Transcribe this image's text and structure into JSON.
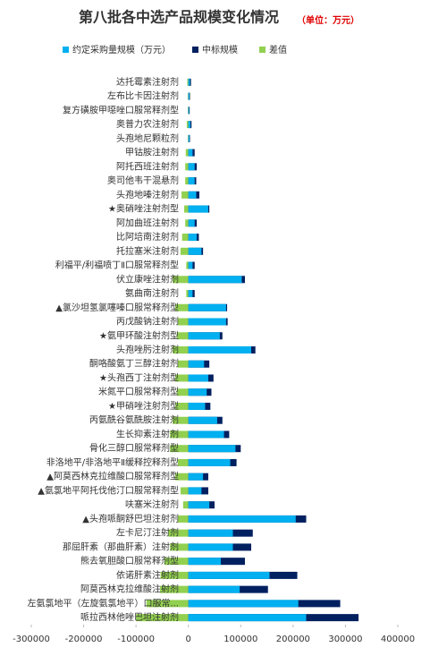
{
  "chart_data": {
    "type": "bar",
    "orientation": "horizontal",
    "title": "第八批各中选产品规模变化情况",
    "subtitle": "（单位：万元）",
    "categories": [
      "达托霉素注射剂",
      "左布比卡因注射剂",
      "复方磺胺甲噁唑口服常释剂型",
      "奥普力农注射剂",
      "头孢地尼颗粒剂",
      "甲钴胺注射剂",
      "阿托西班注射剂",
      "奥司他韦干混悬剂",
      "头孢地嗪注射剂",
      "★奥硝唑注射剂型",
      "阿加曲班注射剂",
      "比阿培南注射剂",
      "托拉塞米注射剂",
      "利福平/利福喷丁Ⅱ口服常释剂型",
      "伏立康唑注射剂",
      "氨曲南注射剂",
      "▲氯沙坦氢氯噻嗪口服常释剂型",
      "丙戊酸钠注射剂",
      "★氨甲环酸注射剂型",
      "头孢唑肟注射剂",
      "酮咯酸氨丁三醇注射剂",
      "★头孢西丁注射剂型",
      "米氮平口服常释剂型",
      "★甲硝唑注射剂型",
      "丙氨酰谷氨酰胺注射剂",
      "生长抑素注射剂",
      "骨化三醇口服常释剂型",
      "非洛地平/非洛地平Ⅱ缓释控释剂型",
      "▲阿莫西林克拉维酸口服常释剂型",
      "▲氨氯地平阿托伐他汀口服常释剂型",
      "呋塞米注射剂",
      "▲头孢哌酮舒巴坦注射剂",
      "左卡尼汀注射剂",
      "那屈肝素（那曲肝素）注射剂",
      "熊去氧胆酸口服常释剂型",
      "依诺肝素注射剂",
      "阿莫西林克拉维酸注射剂",
      "左氨氯地平（左旋氨氯地平）口服常...",
      "哌拉西林他唑巴坦注射剂"
    ],
    "series": [
      {
        "name": "差值",
        "color": "#92d050",
        "values": [
          -2000,
          -1000,
          -1000,
          -3000,
          -1000,
          -5000,
          -6000,
          -6000,
          -13000,
          -8000,
          -6000,
          -12000,
          -15000,
          -4000,
          -30000,
          -4000,
          -25000,
          -20000,
          -22000,
          -30000,
          -20000,
          -25000,
          -22000,
          -25000,
          -30000,
          -35000,
          -35000,
          -20000,
          -25000,
          -15000,
          -10000,
          -20000,
          -38000,
          -35000,
          -46000,
          -53000,
          -54000,
          -80000,
          -100000
        ]
      },
      {
        "name": "中标规模",
        "color": "#002060",
        "values": [
          5000,
          3000,
          2500,
          6000,
          3000,
          12000,
          16000,
          15000,
          21000,
          40000,
          16000,
          20000,
          28000,
          12000,
          108000,
          12000,
          74000,
          75000,
          65000,
          128000,
          40000,
          48000,
          44000,
          42000,
          65000,
          78000,
          100000,
          92000,
          38000,
          38000,
          50000,
          225000,
          123000,
          120000,
          108000,
          208000,
          152000,
          290000,
          325000
        ]
      },
      {
        "name": "约定采购量规模（万元）",
        "color": "#00b0f0",
        "values": [
          3000,
          2000,
          1500,
          4000,
          2000,
          8000,
          12000,
          12000,
          15000,
          38000,
          12000,
          16000,
          25000,
          8000,
          102000,
          8000,
          72000,
          72000,
          60000,
          120000,
          30000,
          38000,
          35000,
          32000,
          55000,
          68000,
          90000,
          80000,
          28000,
          25000,
          40000,
          205000,
          85000,
          85000,
          62000,
          155000,
          98000,
          210000,
          225000
        ]
      }
    ],
    "legend_order": [
      2,
      1,
      0
    ],
    "xlim": [
      -300000,
      400000
    ],
    "xticks": [
      -300000,
      -200000,
      -100000,
      0,
      100000,
      200000,
      300000,
      400000
    ]
  }
}
